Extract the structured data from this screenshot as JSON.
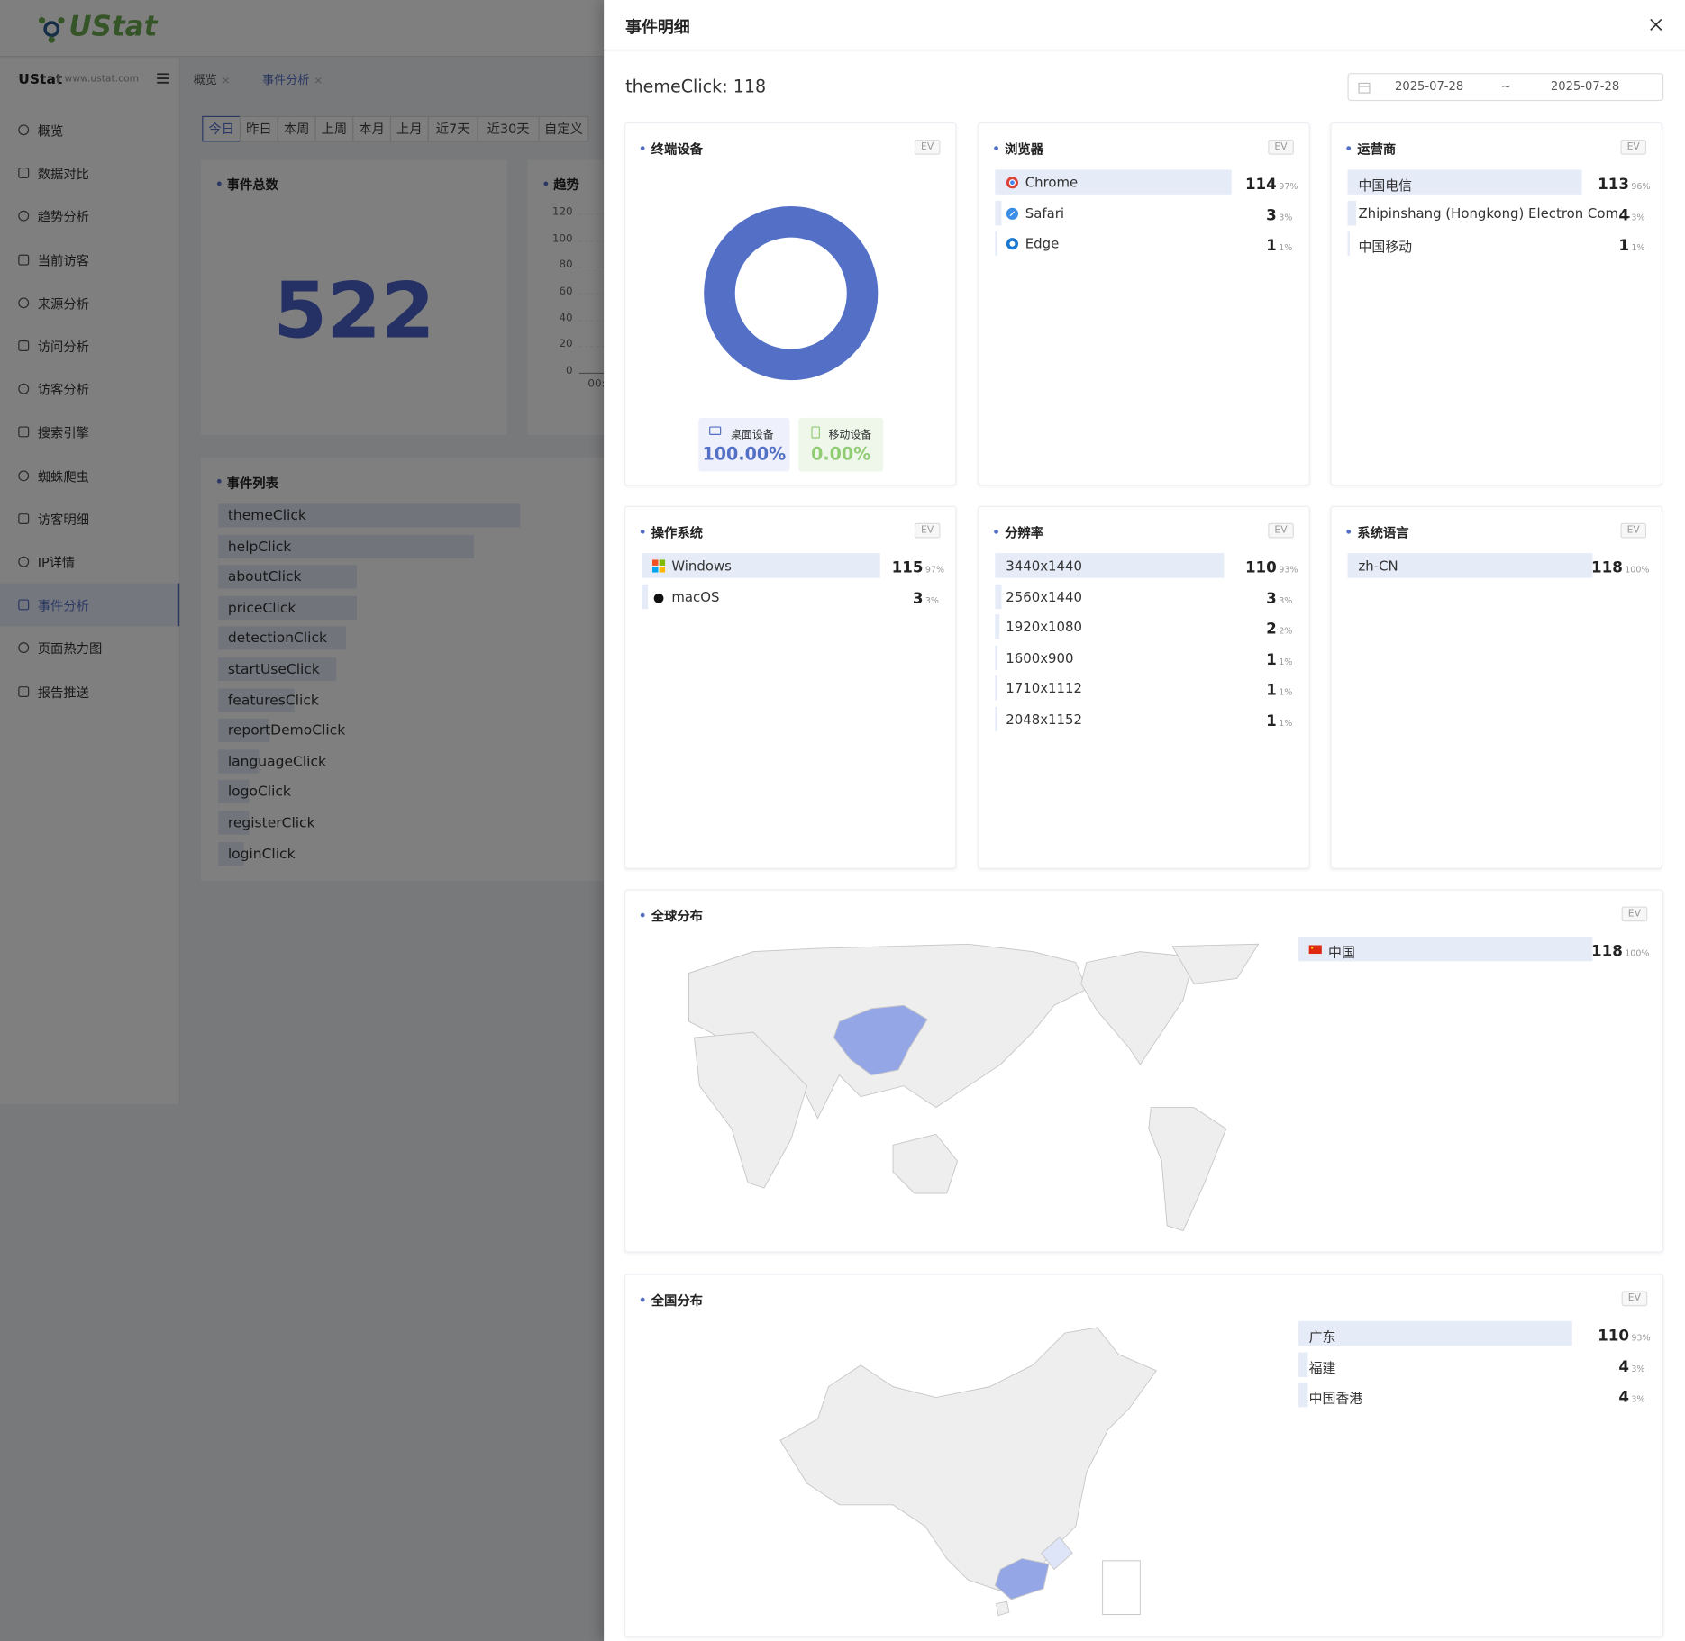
{
  "app": {
    "logo": "UStat",
    "site": "UStat",
    "domain": "www.ustat.com",
    "menu": [
      "概览",
      "数据对比",
      "趋势分析",
      "当前访客",
      "来源分析",
      "访问分析",
      "访客分析",
      "搜索引擎",
      "蜘蛛爬虫",
      "访客明细",
      "IP详情",
      "事件分析",
      "页面热力图",
      "报告推送"
    ],
    "active_menu": 11,
    "tabs": [
      "概览",
      "事件分析"
    ],
    "ranges": [
      "今日",
      "昨日",
      "本周",
      "上周",
      "本月",
      "上月",
      "近7天",
      "近30天",
      "自定义"
    ],
    "total": {
      "title": "事件总数",
      "value": 522
    },
    "trend": {
      "title": "趋势",
      "ylim": [
        0,
        120
      ],
      "yticks": [
        0,
        20,
        40,
        60,
        80,
        100,
        120
      ],
      "x_label": "00:"
    },
    "events": {
      "title": "事件列表",
      "items": [
        {
          "name": "themeClick",
          "count": 118
        },
        {
          "name": "helpClick",
          "count": 100
        },
        {
          "name": "aboutClick",
          "count": 54
        },
        {
          "name": "priceClick",
          "count": 54
        },
        {
          "name": "detectionClick",
          "count": 50
        },
        {
          "name": "startUseClick",
          "count": 46
        },
        {
          "name": "featuresClick",
          "count": 30
        },
        {
          "name": "reportDemoClick",
          "count": 20
        },
        {
          "name": "languageClick",
          "count": 16
        },
        {
          "name": "logoClick",
          "count": 12
        },
        {
          "name": "registerClick",
          "count": 12
        },
        {
          "name": "loginClick",
          "count": 10
        }
      ]
    }
  },
  "drawer": {
    "title": "事件明细",
    "heading": "themeClick: 118",
    "date_start": "2025-07-28",
    "date_sep": "~",
    "date_end": "2025-07-28",
    "device": {
      "title": "终端设备",
      "badge": "EV",
      "categories": [
        "桌面设备",
        "移动设备"
      ],
      "values": [
        100,
        0
      ],
      "value_labels": [
        "100.00%",
        "0.00%"
      ],
      "colors": [
        "#5470c6",
        "#91cc75"
      ]
    },
    "panels": [
      {
        "title": "浏览器",
        "badge": "EV",
        "items": [
          {
            "name": "Chrome",
            "value": 114,
            "percent": "97%"
          },
          {
            "name": "Safari",
            "value": 3,
            "percent": "3%"
          },
          {
            "name": "Edge",
            "value": 1,
            "percent": "1%"
          }
        ]
      },
      {
        "title": "运营商",
        "badge": "EV",
        "items": [
          {
            "name": "中国电信",
            "value": 113,
            "percent": "96%"
          },
          {
            "name": "Zhipinshang (Hongkong) Electron Com...",
            "value": 4,
            "percent": "3%"
          },
          {
            "name": "中国移动",
            "value": 1,
            "percent": "1%"
          }
        ]
      },
      {
        "title": "操作系统",
        "badge": "EV",
        "items": [
          {
            "name": "Windows",
            "value": 115,
            "percent": "97%"
          },
          {
            "name": "macOS",
            "value": 3,
            "percent": "3%"
          }
        ]
      },
      {
        "title": "分辨率",
        "badge": "EV",
        "items": [
          {
            "name": "3440x1440",
            "value": 110,
            "percent": "93%"
          },
          {
            "name": "2560x1440",
            "value": 3,
            "percent": "3%"
          },
          {
            "name": "1920x1080",
            "value": 2,
            "percent": "2%"
          },
          {
            "name": "1600x900",
            "value": 1,
            "percent": "1%"
          },
          {
            "name": "1710x1112",
            "value": 1,
            "percent": "1%"
          },
          {
            "name": "2048x1152",
            "value": 1,
            "percent": "1%"
          }
        ]
      },
      {
        "title": "系统语言",
        "badge": "EV",
        "items": [
          {
            "name": "zh-CN",
            "value": 118,
            "percent": "100%"
          }
        ]
      }
    ],
    "world": {
      "title": "全球分布",
      "badge": "EV",
      "items": [
        {
          "name": "中国",
          "value": 118,
          "percent": "100%"
        }
      ]
    },
    "china": {
      "title": "全国分布",
      "badge": "EV",
      "items": [
        {
          "name": "广东",
          "value": 110,
          "percent": "93%"
        },
        {
          "name": "福建",
          "value": 4,
          "percent": "3%"
        },
        {
          "name": "中国香港",
          "value": 4,
          "percent": "3%"
        }
      ]
    }
  }
}
